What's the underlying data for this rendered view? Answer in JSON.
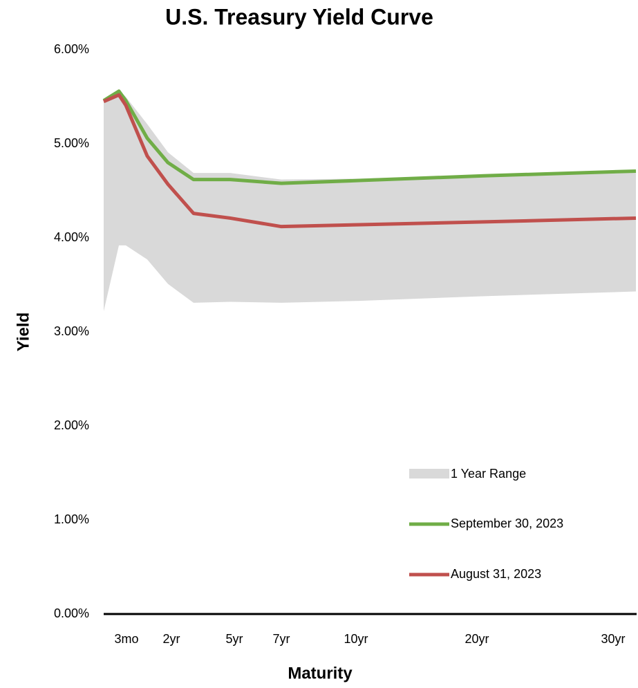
{
  "chart_data": {
    "type": "line",
    "title": "U.S. Treasury Yield Curve",
    "x_label": "Maturity",
    "y_label": "Yield",
    "categories": [
      null,
      "3mo",
      null,
      null,
      "2yr",
      null,
      "5yr",
      "7yr",
      "10yr",
      "20yr",
      "30yr"
    ],
    "ylim": [
      0,
      6
    ],
    "yticks": [
      {
        "value": 0,
        "label": "0.00%"
      },
      {
        "value": 1,
        "label": "1.00%"
      },
      {
        "value": 2,
        "label": "2.00%"
      },
      {
        "value": 3,
        "label": "3.00%"
      },
      {
        "value": 4,
        "label": "4.00%"
      },
      {
        "value": 5,
        "label": "5.00%"
      },
      {
        "value": 6,
        "label": "6.00%"
      }
    ],
    "band": {
      "name": "1 Year Range",
      "color": "#d9d9d9",
      "high": [
        5.46,
        5.57,
        5.5,
        5.21,
        4.91,
        4.69,
        4.69,
        4.62,
        4.63,
        4.67,
        4.72
      ],
      "low": [
        3.22,
        3.92,
        3.92,
        3.77,
        3.51,
        3.31,
        3.32,
        3.31,
        3.33,
        3.38,
        3.43
      ]
    },
    "series": [
      {
        "name": "September 30, 2023",
        "color": "#70ad47",
        "values": [
          5.46,
          5.56,
          5.46,
          5.06,
          4.8,
          4.62,
          4.62,
          4.58,
          4.61,
          4.66,
          4.71
        ]
      },
      {
        "name": "August 31, 2023",
        "color": "#c0504d",
        "values": [
          5.45,
          5.52,
          5.41,
          4.87,
          4.57,
          4.26,
          4.21,
          4.12,
          4.14,
          4.17,
          4.21
        ]
      }
    ]
  }
}
